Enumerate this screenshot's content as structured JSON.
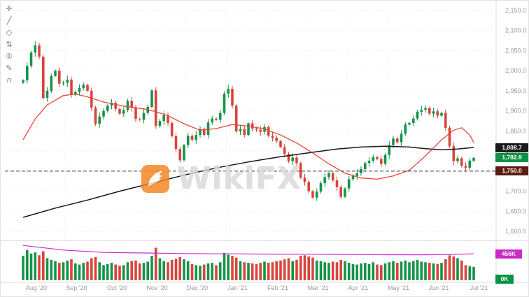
{
  "watermark": {
    "text": "WikiFX"
  },
  "toolbar": {
    "icons": [
      {
        "name": "crosshair-icon",
        "glyph": "✛"
      },
      {
        "name": "trendline-icon",
        "glyph": "╱"
      },
      {
        "name": "shapes-icon",
        "glyph": "◇"
      },
      {
        "name": "arrows-icon",
        "glyph": "⇅"
      },
      {
        "name": "annotation-icon",
        "glyph": "①"
      },
      {
        "name": "pencil-icon",
        "glyph": "✎"
      },
      {
        "name": "magnet-icon",
        "glyph": "∩"
      }
    ]
  },
  "price_labels": {
    "ma_value": "1,808.7",
    "last_price": "1,782.9",
    "ref_line": "1,750.0"
  },
  "volume_labels": {
    "ma_value": "456K",
    "zero": "0K"
  },
  "colors": {
    "up": "#16934a",
    "down": "#d8453c",
    "ma_red": "#e8453c",
    "ma_black": "#161616",
    "volume_ma": "#c92bc9",
    "ref_line": "#3a3a3a",
    "badge_ma": "#1a1a1a",
    "badge_last": "#0b9444",
    "badge_ref": "#5a1d15",
    "logo_orange": "#f5831f"
  },
  "chart_data": {
    "type": "candlestick",
    "y_range": [
      1600,
      2150
    ],
    "y_ticks": [
      {
        "v": 2150,
        "label": "2,150.0"
      },
      {
        "v": 2100,
        "label": "2,100.0"
      },
      {
        "v": 2050,
        "label": "2,050.0"
      },
      {
        "v": 2000,
        "label": "2,000.0"
      },
      {
        "v": 1950,
        "label": "1,950.0"
      },
      {
        "v": 1900,
        "label": "1,900.0"
      },
      {
        "v": 1850,
        "label": "1,850.0"
      },
      {
        "v": 1800,
        "label": "1,800.0"
      },
      {
        "v": 1750,
        "label": "1,750.0"
      },
      {
        "v": 1700,
        "label": "1,700.0"
      },
      {
        "v": 1650,
        "label": "1,650.0"
      },
      {
        "v": 1600,
        "label": "1,600.0"
      }
    ],
    "x_labels": [
      "Aug '20",
      "Sep '20",
      "Oct '20",
      "Nov '20",
      "Dec '20",
      "Jan '21",
      "Feb '21",
      "Mar '21",
      "Apr '21",
      "May '21",
      "Jun '21",
      "Jul '21"
    ],
    "closes": [
      1976,
      2012,
      2045,
      2063,
      2035,
      1932,
      1950,
      1987,
      2000,
      1968,
      1970,
      1978,
      1940,
      1947,
      1957,
      1965,
      1950,
      1908,
      1868,
      1886,
      1900,
      1913,
      1920,
      1905,
      1893,
      1902,
      1925,
      1908,
      1880,
      1878,
      1895,
      1910,
      1951,
      1863,
      1875,
      1889,
      1870,
      1837,
      1805,
      1777,
      1815,
      1838,
      1828,
      1840,
      1855,
      1840,
      1871,
      1881,
      1878,
      1895,
      1943,
      1955,
      1913,
      1849,
      1855,
      1840,
      1869,
      1856,
      1853,
      1848,
      1860,
      1838,
      1833,
      1825,
      1810,
      1793,
      1775,
      1784,
      1770,
      1734,
      1723,
      1700,
      1684,
      1699,
      1720,
      1735,
      1745,
      1727,
      1710,
      1686,
      1707,
      1730,
      1738,
      1745,
      1755,
      1770,
      1776,
      1785,
      1780,
      1768,
      1790,
      1815,
      1831,
      1822,
      1843,
      1866,
      1870,
      1881,
      1898,
      1903,
      1907,
      1893,
      1899,
      1888,
      1895,
      1858,
      1812,
      1775,
      1782,
      1763,
      1758,
      1776,
      1783
    ],
    "volumes_k": [
      420,
      520,
      460,
      480,
      430,
      500,
      380,
      350,
      330,
      300,
      310,
      340,
      360,
      290,
      270,
      300,
      320,
      380,
      400,
      310,
      260,
      280,
      300,
      270,
      250,
      260,
      310,
      330,
      340,
      290,
      300,
      320,
      420,
      560,
      380,
      330,
      310,
      350,
      370,
      400,
      360,
      330,
      280,
      260,
      250,
      270,
      290,
      300,
      260,
      310,
      470,
      440,
      420,
      390,
      330,
      310,
      300,
      290,
      280,
      300,
      320,
      300,
      310,
      330,
      340,
      360,
      380,
      330,
      350,
      420,
      430,
      410,
      390,
      340,
      330,
      310,
      300,
      320,
      310,
      350,
      330,
      300,
      280,
      270,
      290,
      300,
      280,
      310,
      270,
      260,
      290,
      310,
      330,
      300,
      320,
      340,
      310,
      330,
      350,
      320,
      310,
      300,
      290,
      280,
      300,
      360,
      430,
      410,
      380,
      340,
      260,
      240,
      230
    ],
    "ma_red": [
      [
        0,
        1828
      ],
      [
        3,
        1880
      ],
      [
        6,
        1915
      ],
      [
        10,
        1938
      ],
      [
        13,
        1942
      ],
      [
        16,
        1935
      ],
      [
        20,
        1922
      ],
      [
        25,
        1912
      ],
      [
        30,
        1905
      ],
      [
        33,
        1898
      ],
      [
        36,
        1888
      ],
      [
        40,
        1868
      ],
      [
        44,
        1852
      ],
      [
        48,
        1856
      ],
      [
        52,
        1866
      ],
      [
        56,
        1862
      ],
      [
        60,
        1855
      ],
      [
        64,
        1840
      ],
      [
        68,
        1820
      ],
      [
        72,
        1795
      ],
      [
        76,
        1768
      ],
      [
        80,
        1745
      ],
      [
        84,
        1733
      ],
      [
        88,
        1730
      ],
      [
        92,
        1738
      ],
      [
        96,
        1752
      ],
      [
        100,
        1788
      ],
      [
        104,
        1828
      ],
      [
        107,
        1852
      ],
      [
        109,
        1858
      ],
      [
        111,
        1840
      ],
      [
        112,
        1822
      ]
    ],
    "ma_black": [
      [
        0,
        1635
      ],
      [
        8,
        1658
      ],
      [
        16,
        1678
      ],
      [
        24,
        1700
      ],
      [
        32,
        1720
      ],
      [
        40,
        1740
      ],
      [
        48,
        1758
      ],
      [
        56,
        1773
      ],
      [
        64,
        1786
      ],
      [
        72,
        1797
      ],
      [
        78,
        1805
      ],
      [
        84,
        1810
      ],
      [
        90,
        1812
      ],
      [
        96,
        1810
      ],
      [
        100,
        1806
      ],
      [
        104,
        1803
      ],
      [
        108,
        1805
      ],
      [
        112,
        1809
      ]
    ],
    "volume_ma_k": [
      [
        0,
        600
      ],
      [
        10,
        520
      ],
      [
        20,
        480
      ],
      [
        30,
        470
      ],
      [
        40,
        460
      ],
      [
        50,
        455
      ],
      [
        60,
        450
      ],
      [
        70,
        448
      ],
      [
        80,
        445
      ],
      [
        90,
        440
      ],
      [
        100,
        438
      ],
      [
        106,
        445
      ],
      [
        112,
        456
      ]
    ],
    "ref_line_price": 1750,
    "last_price": 1782.9,
    "ma_black_value": 1808.7,
    "volume_ma_value_k": 456
  }
}
